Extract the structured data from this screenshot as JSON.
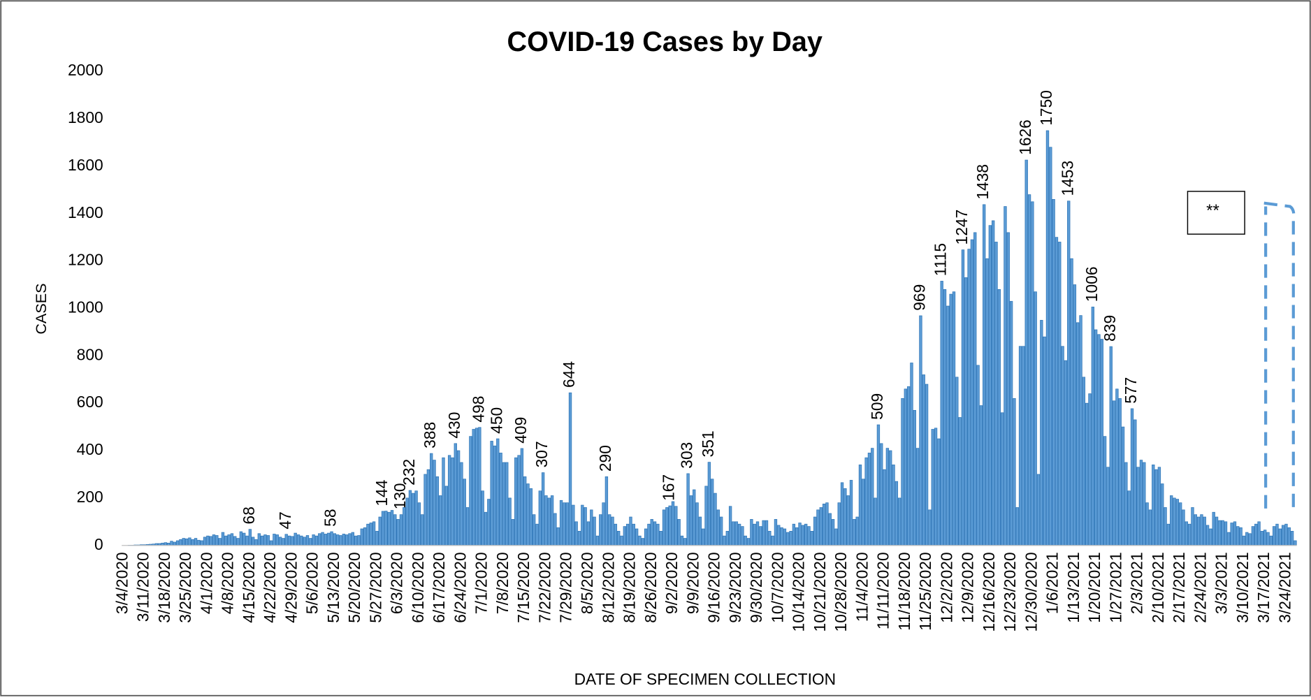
{
  "chart_data": {
    "type": "bar",
    "title": "COVID-19 Cases by Day",
    "x_label": "DATE OF SPECIMEN COLLECTION",
    "y_label": "CASES",
    "annotation": "**",
    "color": "#5b9bd5",
    "grid": false,
    "ylim": [
      0,
      2000
    ],
    "yticks": [
      0,
      200,
      400,
      600,
      800,
      1000,
      1200,
      1400,
      1600,
      1800,
      2000
    ],
    "categories": [
      "3/4/2020",
      null,
      null,
      null,
      null,
      null,
      null,
      "3/11/2020",
      null,
      null,
      null,
      null,
      null,
      null,
      "3/18/2020",
      null,
      null,
      null,
      null,
      null,
      null,
      "3/25/2020",
      null,
      null,
      null,
      null,
      null,
      null,
      "4/1/2020",
      null,
      null,
      null,
      null,
      null,
      null,
      "4/8/2020",
      null,
      null,
      null,
      null,
      null,
      null,
      "4/15/2020",
      null,
      null,
      null,
      null,
      null,
      null,
      "4/22/2020",
      null,
      null,
      null,
      null,
      null,
      null,
      "4/29/2020",
      null,
      null,
      null,
      null,
      null,
      null,
      "5/6/2020",
      null,
      null,
      null,
      null,
      null,
      null,
      "5/13/2020",
      null,
      null,
      null,
      null,
      null,
      null,
      "5/20/2020",
      null,
      null,
      null,
      null,
      null,
      null,
      "5/27/2020",
      null,
      null,
      null,
      null,
      null,
      null,
      "6/3/2020",
      null,
      null,
      null,
      null,
      null,
      null,
      "6/10/2020",
      null,
      null,
      null,
      null,
      null,
      null,
      "6/17/2020",
      null,
      null,
      null,
      null,
      null,
      null,
      "6/24/2020",
      null,
      null,
      null,
      null,
      null,
      null,
      "7/1/2020",
      null,
      null,
      null,
      null,
      null,
      null,
      "7/8/2020",
      null,
      null,
      null,
      null,
      null,
      null,
      "7/15/2020",
      null,
      null,
      null,
      null,
      null,
      null,
      "7/22/2020",
      null,
      null,
      null,
      null,
      null,
      null,
      "7/29/2020",
      null,
      null,
      null,
      null,
      null,
      null,
      "8/5/2020",
      null,
      null,
      null,
      null,
      null,
      null,
      "8/12/2020",
      null,
      null,
      null,
      null,
      null,
      null,
      "8/19/2020",
      null,
      null,
      null,
      null,
      null,
      null,
      "8/26/2020",
      null,
      null,
      null,
      null,
      null,
      null,
      "9/2/2020",
      null,
      null,
      null,
      null,
      null,
      null,
      "9/9/2020",
      null,
      null,
      null,
      null,
      null,
      null,
      "9/16/2020",
      null,
      null,
      null,
      null,
      null,
      null,
      "9/23/2020",
      null,
      null,
      null,
      null,
      null,
      null,
      "9/30/2020",
      null,
      null,
      null,
      null,
      null,
      null,
      "10/7/2020",
      null,
      null,
      null,
      null,
      null,
      null,
      "10/14/2020",
      null,
      null,
      null,
      null,
      null,
      null,
      "10/21/2020",
      null,
      null,
      null,
      null,
      null,
      null,
      "10/28/2020",
      null,
      null,
      null,
      null,
      null,
      null,
      "11/4/2020",
      null,
      null,
      null,
      null,
      null,
      null,
      "11/11/2020",
      null,
      null,
      null,
      null,
      null,
      null,
      "11/18/2020",
      null,
      null,
      null,
      null,
      null,
      null,
      "11/25/2020",
      null,
      null,
      null,
      null,
      null,
      null,
      "12/2/2020",
      null,
      null,
      null,
      null,
      null,
      null,
      "12/9/2020",
      null,
      null,
      null,
      null,
      null,
      null,
      "12/16/2020",
      null,
      null,
      null,
      null,
      null,
      null,
      "12/23/2020",
      null,
      null,
      null,
      null,
      null,
      null,
      "12/30/2020",
      null,
      null,
      null,
      null,
      null,
      null,
      "1/6/2021",
      null,
      null,
      null,
      null,
      null,
      null,
      "1/13/2021",
      null,
      null,
      null,
      null,
      null,
      null,
      "1/20/2021",
      null,
      null,
      null,
      null,
      null,
      null,
      "1/27/2021",
      null,
      null,
      null,
      null,
      null,
      null,
      "2/3/2021",
      null,
      null,
      null,
      null,
      null,
      null,
      "2/10/2021",
      null,
      null,
      null,
      null,
      null,
      null,
      "2/17/2021",
      null,
      null,
      null,
      null,
      null,
      null,
      "2/24/2021",
      null,
      null,
      null,
      null,
      null,
      null,
      "3/3/2021",
      null,
      null,
      null,
      null,
      null,
      null,
      "3/10/2021",
      null,
      null,
      null,
      null,
      null,
      null,
      "3/17/2021",
      null,
      null,
      null,
      null,
      null,
      null,
      "3/24/2021",
      null,
      null,
      null
    ],
    "values": [
      0,
      0,
      1,
      1,
      2,
      2,
      3,
      3,
      4,
      5,
      6,
      8,
      8,
      10,
      12,
      10,
      18,
      14,
      20,
      25,
      30,
      28,
      32,
      25,
      30,
      22,
      20,
      35,
      40,
      38,
      45,
      42,
      30,
      55,
      40,
      45,
      50,
      38,
      30,
      58,
      52,
      40,
      68,
      35,
      25,
      50,
      40,
      45,
      42,
      20,
      48,
      45,
      35,
      30,
      47,
      40,
      38,
      52,
      45,
      40,
      35,
      42,
      30,
      45,
      40,
      50,
      55,
      48,
      52,
      58,
      50,
      45,
      42,
      48,
      45,
      50,
      55,
      40,
      42,
      70,
      75,
      90,
      95,
      100,
      60,
      120,
      144,
      145,
      140,
      148,
      130,
      110,
      130,
      160,
      200,
      232,
      220,
      230,
      180,
      130,
      300,
      320,
      388,
      360,
      290,
      210,
      370,
      250,
      380,
      370,
      430,
      400,
      350,
      280,
      160,
      460,
      490,
      495,
      498,
      230,
      140,
      195,
      440,
      420,
      450,
      390,
      350,
      350,
      200,
      110,
      370,
      380,
      409,
      290,
      260,
      240,
      130,
      90,
      230,
      307,
      210,
      200,
      210,
      135,
      75,
      190,
      180,
      180,
      644,
      170,
      100,
      60,
      170,
      160,
      100,
      150,
      120,
      40,
      130,
      180,
      290,
      130,
      120,
      90,
      60,
      40,
      80,
      90,
      120,
      90,
      70,
      40,
      30,
      70,
      90,
      110,
      100,
      90,
      60,
      150,
      160,
      167,
      185,
      165,
      110,
      40,
      30,
      303,
      210,
      235,
      180,
      120,
      70,
      250,
      351,
      280,
      220,
      150,
      120,
      40,
      60,
      165,
      100,
      100,
      90,
      80,
      40,
      30,
      110,
      90,
      100,
      80,
      105,
      105,
      60,
      40,
      110,
      85,
      75,
      70,
      55,
      60,
      90,
      75,
      95,
      85,
      90,
      80,
      60,
      120,
      150,
      160,
      175,
      180,
      135,
      110,
      70,
      180,
      265,
      240,
      210,
      275,
      110,
      120,
      340,
      280,
      370,
      390,
      410,
      200,
      509,
      430,
      320,
      410,
      400,
      340,
      270,
      200,
      620,
      660,
      670,
      770,
      570,
      410,
      969,
      720,
      680,
      150,
      490,
      495,
      450,
      1115,
      1080,
      1010,
      1060,
      1070,
      710,
      540,
      1247,
      1130,
      1250,
      1290,
      1320,
      760,
      590,
      1438,
      1210,
      1350,
      1370,
      1280,
      1080,
      560,
      1430,
      1320,
      1030,
      620,
      160,
      840,
      840,
      1626,
      1480,
      1450,
      1070,
      300,
      950,
      880,
      1750,
      1680,
      1460,
      1300,
      1280,
      840,
      780,
      1453,
      1210,
      1100,
      940,
      970,
      710,
      600,
      640,
      1006,
      910,
      890,
      870,
      460,
      330,
      839,
      610,
      660,
      620,
      500,
      350,
      230,
      577,
      530,
      330,
      360,
      350,
      180,
      150,
      340,
      320,
      330,
      260,
      160,
      90,
      210,
      200,
      195,
      180,
      150,
      100,
      90,
      160,
      130,
      120,
      130,
      120,
      85,
      70,
      140,
      120,
      105,
      105,
      100,
      55,
      95,
      100,
      80,
      75,
      40,
      55,
      50,
      80,
      90,
      100,
      60,
      65,
      55,
      40,
      80,
      90,
      70,
      85,
      90,
      75,
      60,
      20
    ],
    "value_labels": [
      null,
      null,
      null,
      null,
      null,
      null,
      null,
      null,
      null,
      null,
      null,
      null,
      null,
      null,
      null,
      null,
      null,
      null,
      null,
      null,
      null,
      null,
      null,
      null,
      null,
      null,
      null,
      null,
      null,
      null,
      null,
      null,
      null,
      null,
      null,
      null,
      null,
      null,
      null,
      null,
      null,
      null,
      "68",
      null,
      null,
      null,
      null,
      null,
      null,
      null,
      null,
      null,
      null,
      null,
      "47",
      null,
      null,
      null,
      null,
      null,
      null,
      null,
      null,
      null,
      null,
      null,
      null,
      null,
      null,
      "58",
      null,
      null,
      null,
      null,
      null,
      null,
      null,
      null,
      null,
      null,
      null,
      null,
      null,
      null,
      null,
      null,
      "144",
      null,
      null,
      null,
      null,
      null,
      "130",
      null,
      null,
      "232",
      null,
      null,
      null,
      null,
      null,
      null,
      "388",
      null,
      null,
      null,
      null,
      null,
      null,
      null,
      "430",
      null,
      null,
      null,
      null,
      null,
      null,
      null,
      "498",
      null,
      null,
      null,
      null,
      null,
      "450",
      null,
      null,
      null,
      null,
      null,
      null,
      null,
      "409",
      null,
      null,
      null,
      null,
      null,
      null,
      "307",
      null,
      null,
      null,
      null,
      null,
      null,
      null,
      null,
      "644",
      null,
      null,
      null,
      null,
      null,
      null,
      null,
      null,
      null,
      null,
      null,
      "290",
      null,
      null,
      null,
      null,
      null,
      null,
      null,
      null,
      null,
      null,
      null,
      null,
      null,
      null,
      null,
      null,
      null,
      null,
      null,
      null,
      "167",
      null,
      null,
      null,
      null,
      null,
      "303",
      null,
      null,
      null,
      null,
      null,
      null,
      "351",
      null,
      null,
      null,
      null,
      null,
      null,
      null,
      null,
      null,
      null,
      null,
      null,
      null,
      null,
      null,
      null,
      null,
      null,
      null,
      null,
      null,
      null,
      null,
      null,
      null,
      null,
      null,
      null,
      null,
      null,
      null,
      null,
      null,
      null,
      null,
      null,
      null,
      null,
      null,
      null,
      null,
      null,
      null,
      null,
      null,
      null,
      null,
      null,
      null,
      null,
      null,
      null,
      null,
      null,
      null,
      "509",
      null,
      null,
      null,
      null,
      null,
      null,
      null,
      null,
      null,
      null,
      null,
      null,
      null,
      "969",
      null,
      null,
      null,
      null,
      null,
      null,
      "1115",
      null,
      null,
      null,
      null,
      null,
      null,
      "1247",
      null,
      null,
      null,
      null,
      null,
      null,
      "1438",
      null,
      null,
      null,
      null,
      null,
      null,
      null,
      null,
      null,
      null,
      null,
      null,
      null,
      "1626",
      null,
      null,
      null,
      null,
      null,
      null,
      "1750",
      null,
      null,
      null,
      null,
      null,
      null,
      "1453",
      null,
      null,
      null,
      null,
      null,
      null,
      null,
      "1006",
      null,
      null,
      null,
      null,
      null,
      "839",
      null,
      null,
      null,
      null,
      null,
      null,
      "577",
      null,
      null,
      null,
      null,
      null,
      null,
      null,
      null,
      null,
      null,
      null,
      null,
      null,
      null,
      null,
      null,
      null,
      null,
      null,
      null,
      null,
      null,
      null,
      null,
      null,
      null,
      null,
      null,
      null,
      null,
      null,
      null,
      null,
      null,
      null,
      null,
      null,
      null,
      null,
      null,
      null,
      null,
      null,
      null,
      null,
      null,
      null,
      null,
      null,
      null,
      null,
      null,
      null,
      null
    ]
  }
}
